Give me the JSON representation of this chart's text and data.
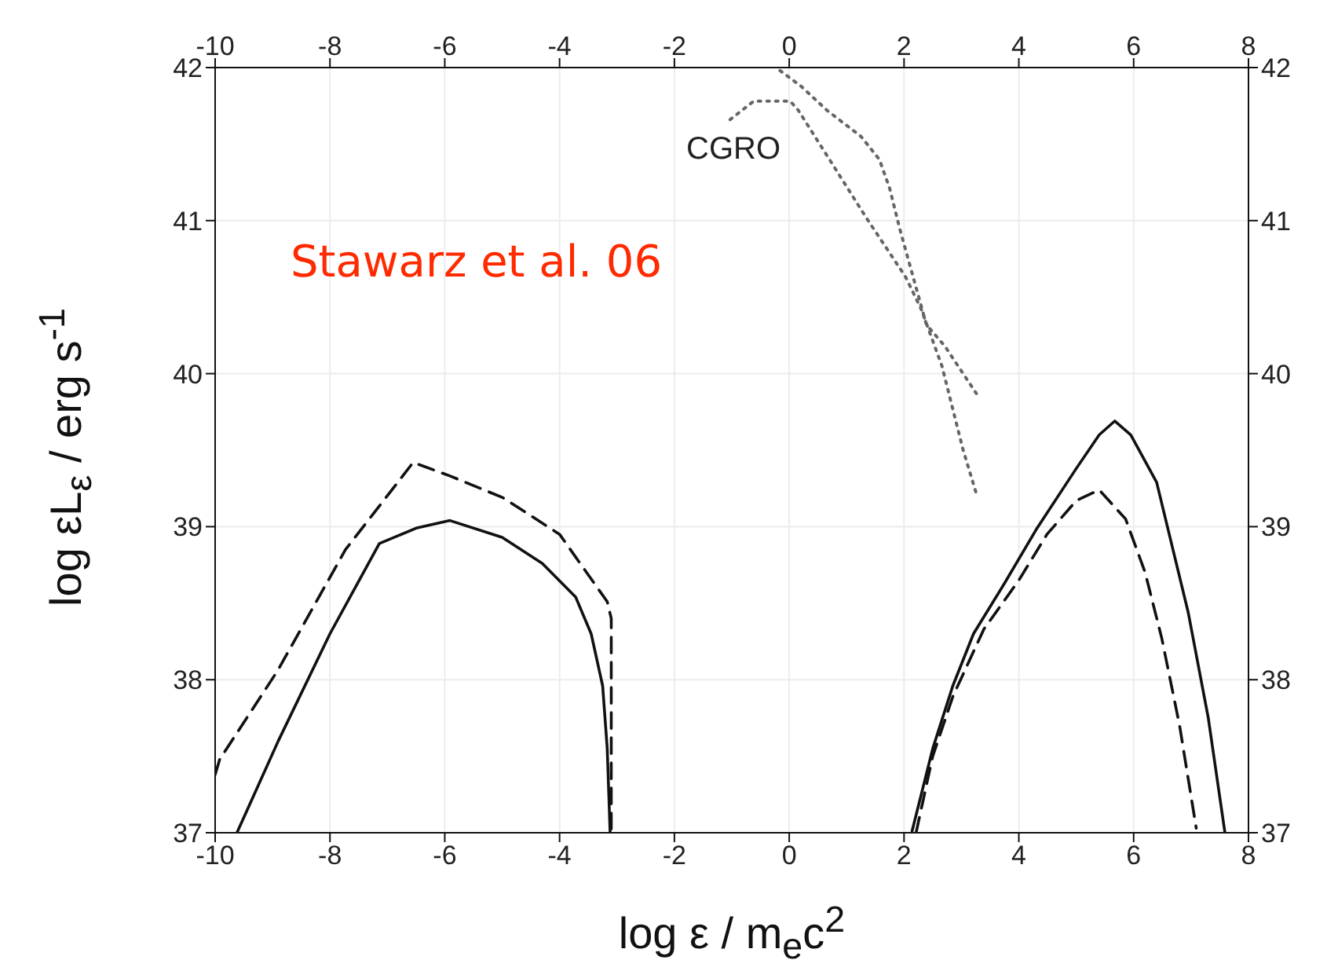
{
  "chart_data": {
    "type": "line",
    "xlabel": "log  ε / m$_{e}$c$^{2}$",
    "ylabel": "log  εL$_{ε}$ / erg s$^{-1}$",
    "xlim": [
      -10,
      8
    ],
    "xticks": [
      -10,
      -8,
      -6,
      -4,
      -2,
      0,
      2,
      4,
      6,
      8
    ],
    "x2lim": [
      -10,
      8
    ],
    "x2ticks": [
      -10,
      -8,
      -6,
      -4,
      -2,
      0,
      2,
      4,
      6,
      8
    ],
    "ylim": [
      37,
      42
    ],
    "yticks": [
      37,
      38,
      39,
      40,
      41,
      42
    ],
    "y2lim": [
      37,
      42
    ],
    "y2ticks": [
      37,
      38,
      39,
      40,
      41,
      42
    ],
    "grid": true,
    "marker": "none",
    "annotations": [
      "Stawarz et al. 06",
      "CGRO"
    ],
    "series": [
      {
        "color": "#111111",
        "line_style": "solid",
        "x": [
          -9.62,
          -8.9,
          -8.0,
          -7.14,
          -6.5,
          -5.91,
          -5.0,
          -4.3,
          -3.72,
          -3.45,
          -3.25,
          -3.17,
          -3.12
        ],
        "values": [
          37.0,
          37.6,
          38.3,
          38.89,
          38.99,
          39.04,
          38.93,
          38.76,
          38.54,
          38.3,
          37.96,
          37.55,
          37.0
        ]
      },
      {
        "color": "#111111",
        "line_style": "dashed",
        "x": [
          -10,
          -9.92,
          -8.91,
          -7.73,
          -6.55,
          -5.9,
          -4.99,
          -4.0,
          -3.17,
          -3.1,
          -3.1
        ],
        "values": [
          37.38,
          37.48,
          38.06,
          38.85,
          39.42,
          39.33,
          39.19,
          38.95,
          38.51,
          38.4,
          37.0
        ]
      },
      {
        "color": "#111111",
        "line_style": "solid",
        "x": [
          2.14,
          2.5,
          2.85,
          3.21,
          3.75,
          4.3,
          5.0,
          5.4,
          5.67,
          5.95,
          6.4,
          6.95,
          7.3,
          7.59
        ],
        "values": [
          37.01,
          37.55,
          37.96,
          38.3,
          38.63,
          38.98,
          39.38,
          39.6,
          39.69,
          39.6,
          39.29,
          38.44,
          37.75,
          37.0
        ]
      },
      {
        "color": "#111111",
        "line_style": "dashed",
        "x": [
          2.21,
          2.5,
          2.85,
          3.39,
          4.0,
          4.49,
          5.0,
          5.4,
          5.86,
          6.2,
          6.49,
          6.8,
          7.09
        ],
        "values": [
          37.0,
          37.5,
          37.89,
          38.33,
          38.65,
          38.95,
          39.17,
          39.24,
          39.05,
          38.7,
          38.27,
          37.7,
          37.03
        ]
      },
      {
        "color": "#666666",
        "line_style": "dotted",
        "x": [
          -1.03,
          -0.62,
          0.02,
          0.16,
          0.7,
          1.34,
          2.03,
          2.3,
          2.66,
          3.03,
          3.28
        ],
        "values": [
          41.66,
          41.78,
          41.78,
          41.72,
          41.4,
          41.02,
          40.63,
          40.42,
          40.05,
          39.5,
          39.19
        ]
      },
      {
        "color": "#666666",
        "line_style": "dotted",
        "x": [
          -0.16,
          0.2,
          0.66,
          1.25,
          1.57,
          1.75,
          1.93,
          2.16,
          2.39,
          2.71,
          3.26
        ],
        "values": [
          41.98,
          41.88,
          41.72,
          41.55,
          41.4,
          41.21,
          40.94,
          40.63,
          40.32,
          40.18,
          39.87
        ]
      }
    ]
  }
}
